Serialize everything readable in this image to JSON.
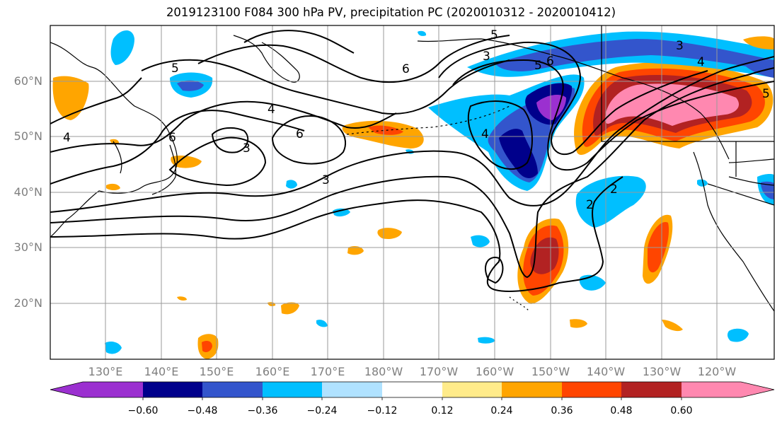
{
  "title": "2019123100 F084 300 hPa PV, precipitation PC (2020010312 - 2020010412)",
  "map": {
    "lat_labels": [
      "60°N",
      "50°N",
      "40°N",
      "30°N",
      "20°N"
    ],
    "lon_labels": [
      "130°E",
      "140°E",
      "150°E",
      "160°E",
      "170°E",
      "180°W",
      "170°W",
      "160°W",
      "150°W",
      "140°W",
      "130°W",
      "120°W"
    ],
    "contour_labels": [
      "5",
      "5",
      "6",
      "4",
      "4",
      "3",
      "6",
      "6",
      "3",
      "3",
      "4",
      "5",
      "6",
      "2",
      "2",
      "3",
      "4",
      "5"
    ],
    "grid": true,
    "colors": {
      "land_outline": "#000000",
      "grid": "#9a9a9a",
      "contour": "#000000"
    }
  },
  "colorbar": {
    "ticks": [
      "−0.60",
      "−0.48",
      "−0.36",
      "−0.24",
      "−0.12",
      "0.12",
      "0.24",
      "0.36",
      "0.48",
      "0.60"
    ],
    "colors": [
      "#9b30d0",
      "#00008b",
      "#3355cc",
      "#00bfff",
      "#b0e2ff",
      "#ffffff",
      "#ffeb8a",
      "#ffa500",
      "#ff4500",
      "#b22222",
      "#ff88b0",
      "#ff88b0"
    ],
    "extend": "both"
  }
}
